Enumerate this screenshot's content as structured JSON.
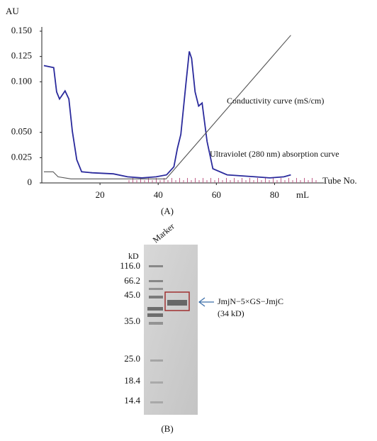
{
  "chart_data": {
    "type": "line",
    "y_unit": "AU",
    "x_unit": "mL",
    "tube_label": "Tube No.",
    "panel_label": "(A)",
    "xlim": [
      0,
      95
    ],
    "xticks": [
      20,
      40,
      60,
      80
    ],
    "ylim": [
      0,
      0.15
    ],
    "yticks": [
      0,
      0.025,
      {
        "value": 0.05,
        "label": "0.050"
      },
      {
        "value": 0.1,
        "label": "0.100"
      },
      0.125,
      {
        "value": 0.15,
        "label": "0.150"
      }
    ],
    "series": [
      {
        "name": "Ultraviolet (280 nm) absorption curve",
        "color": "#2a2a9c",
        "x": [
          0.7,
          4.1,
          5.1,
          6.1,
          8.0,
          9.3,
          10.5,
          12.0,
          13.7,
          17.3,
          24.6,
          29.5,
          34.4,
          39.3,
          42.9,
          45.4,
          46.6,
          47.8,
          49.5,
          50.7,
          51.5,
          52.7,
          53.9,
          55.1,
          56.8,
          58.8,
          63.7,
          73.4,
          78.3,
          83.2,
          85.6
        ],
        "values": [
          0.116,
          0.114,
          0.09,
          0.083,
          0.091,
          0.083,
          0.051,
          0.023,
          0.011,
          0.01,
          0.009,
          0.006,
          0.005,
          0.006,
          0.008,
          0.016,
          0.034,
          0.048,
          0.097,
          0.13,
          0.123,
          0.09,
          0.076,
          0.079,
          0.041,
          0.014,
          0.008,
          0.006,
          0.005,
          0.006,
          0.008
        ]
      },
      {
        "name": "Conductivity curve (mS/cm)",
        "color": "#555555",
        "x": [
          0.7,
          3.9,
          5.6,
          10.0,
          34.4,
          42.7,
          85.6
        ],
        "values": [
          0.011,
          0.011,
          0.006,
          0.004,
          0.004,
          0.004,
          0.146
        ]
      }
    ]
  },
  "gel": {
    "lane_label": "Marker",
    "unit": "kD",
    "markers": [
      "116.0",
      "66.2",
      "45.0",
      "35.0",
      "25.0",
      "18.4",
      "14.4"
    ],
    "band_label": "JmjN−5×GS−JmjC",
    "band_size": "(34 kD)",
    "panel_label": "(B)"
  }
}
